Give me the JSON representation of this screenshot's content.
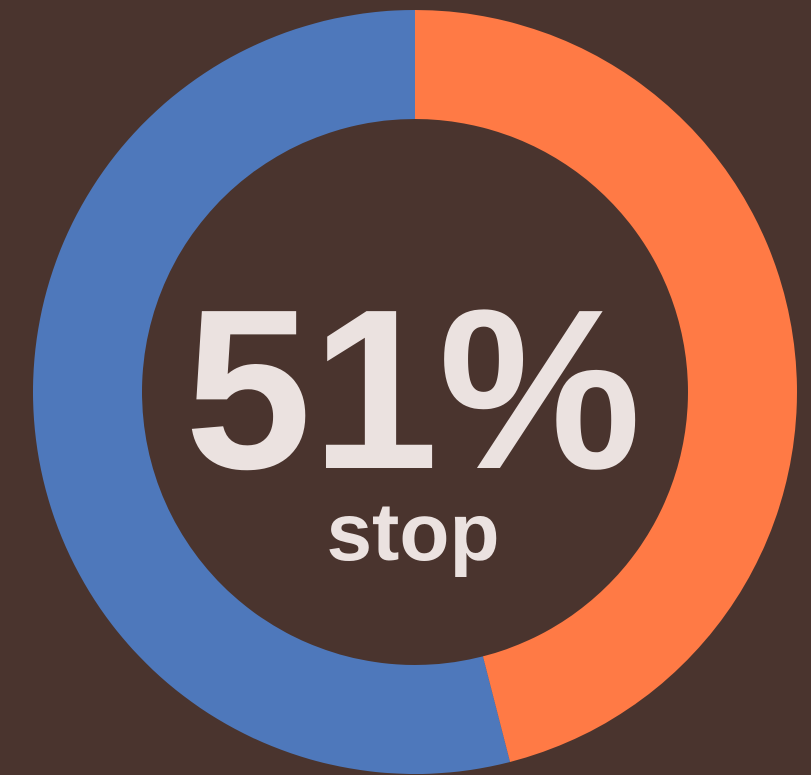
{
  "chart_data": {
    "type": "donut",
    "categories": [
      null,
      null
    ],
    "values": [
      46,
      54
    ],
    "colors": [
      "#ff7a45",
      "#4e78bb"
    ],
    "center_value": "51%",
    "center_label": "stop"
  }
}
